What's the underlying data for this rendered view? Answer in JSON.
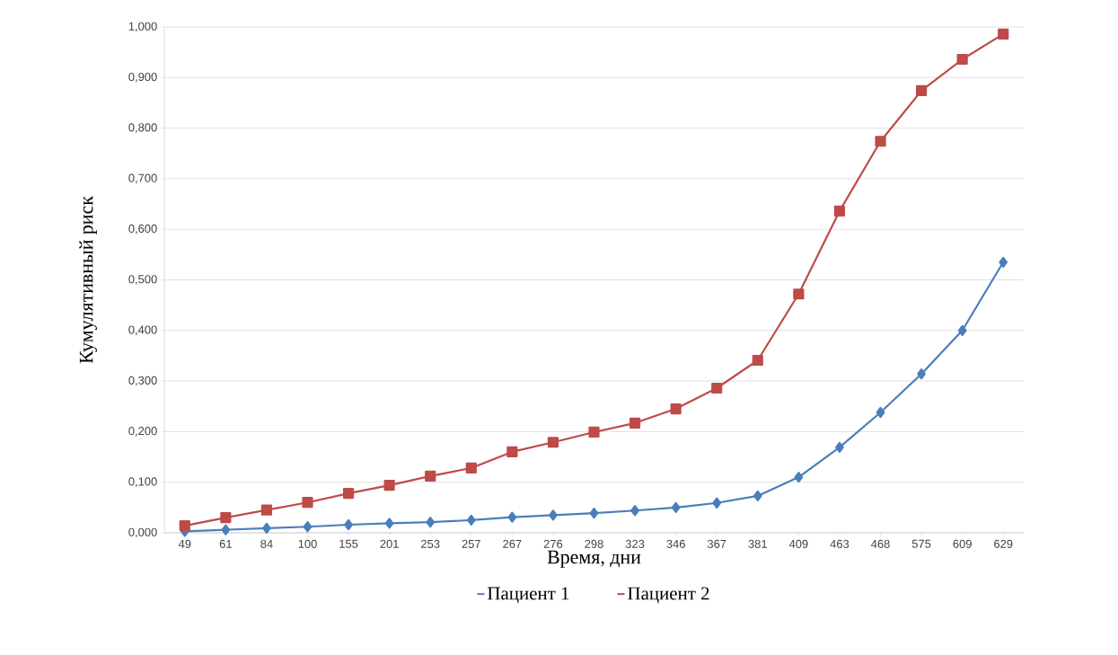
{
  "chart_data": {
    "type": "line",
    "xlabel": "Время, дни",
    "ylabel": "Кумулятивный риск",
    "categories": [
      "49",
      "61",
      "84",
      "100",
      "155",
      "201",
      "253",
      "257",
      "267",
      "276",
      "298",
      "323",
      "346",
      "367",
      "381",
      "409",
      "463",
      "468",
      "575",
      "609",
      "629"
    ],
    "series": [
      {
        "name": "Пациент 1",
        "color": "#4a7ebb",
        "marker": "diamond",
        "values": [
          0.003,
          0.006,
          0.009,
          0.012,
          0.016,
          0.019,
          0.021,
          0.025,
          0.031,
          0.035,
          0.039,
          0.044,
          0.05,
          0.059,
          0.073,
          0.11,
          0.169,
          0.238,
          0.314,
          0.4,
          0.535
        ]
      },
      {
        "name": "Пациент 2",
        "color": "#be4b48",
        "marker": "square",
        "values": [
          0.014,
          0.03,
          0.045,
          0.06,
          0.078,
          0.094,
          0.112,
          0.128,
          0.16,
          0.179,
          0.199,
          0.217,
          0.245,
          0.286,
          0.341,
          0.472,
          0.636,
          0.774,
          0.874,
          0.936,
          0.986
        ]
      }
    ],
    "ylim": [
      0,
      1
    ],
    "yticks": [
      {
        "value": 0,
        "label": "0,000"
      },
      {
        "value": 0.1,
        "label": "0,100"
      },
      {
        "value": 0.2,
        "label": "0,200"
      },
      {
        "value": 0.3,
        "label": "0,300"
      },
      {
        "value": 0.4,
        "label": "0,400"
      },
      {
        "value": 0.5,
        "label": "0,500"
      },
      {
        "value": 0.6,
        "label": "0,600"
      },
      {
        "value": 0.7,
        "label": "0,700"
      },
      {
        "value": 0.8,
        "label": "0,800"
      },
      {
        "value": 0.9,
        "label": "0,900"
      },
      {
        "value": 1,
        "label": "1,000"
      }
    ],
    "grid": "y",
    "legend": "bottom",
    "line_style": "solid"
  }
}
